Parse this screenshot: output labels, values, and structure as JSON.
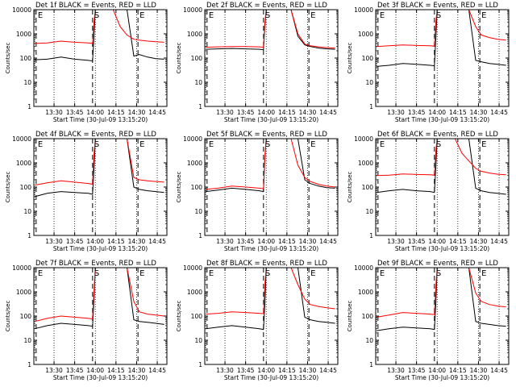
{
  "figure": {
    "x_tick_labels": [
      "13:30",
      "13:45",
      "14:00",
      "14:15",
      "14:30",
      "14:45"
    ],
    "x_label": "Start Time (30-Jul-09 13:15:20)",
    "y_label": "Counts/sec",
    "y_tick_labels": [
      "1",
      "10",
      "100",
      "1000",
      "10000"
    ],
    "marker_labels": [
      "E",
      "S",
      "E"
    ],
    "colors": {
      "events": "#000000",
      "lld": "#ff0000",
      "axes": "#000000",
      "background": "#ffffff"
    }
  },
  "chart_data": [
    {
      "type": "line",
      "title": "Det 1f BLACK = Events, RED = LLD",
      "x_range": [
        "13:15:20",
        "14:52:00"
      ],
      "y_scale": "log",
      "ylim": [
        1,
        10000
      ],
      "x": [
        "13:16",
        "13:25",
        "13:35",
        "13:45",
        "13:55",
        "13:58",
        "13:59",
        "14:00",
        "14:03",
        "14:08",
        "14:13",
        "14:18",
        "14:23",
        "14:28",
        "14:32",
        "14:38",
        "14:44",
        "14:50"
      ],
      "series": [
        {
          "name": "BLACK = Events",
          "color": "#000000",
          "values": [
            85,
            90,
            110,
            90,
            80,
            75,
            700,
            10000,
            10000,
            10000,
            10000,
            10000,
            10000,
            120,
            140,
            110,
            95,
            90
          ]
        },
        {
          "name": "RED = LLD",
          "color": "#ff0000",
          "values": [
            400,
            420,
            500,
            450,
            420,
            400,
            3000,
            10000,
            10000,
            10000,
            10000,
            2000,
            900,
            600,
            550,
            500,
            470,
            450
          ]
        }
      ],
      "markers": [
        {
          "label": "E",
          "time": "13:17"
        },
        {
          "label": "S",
          "time": "13:58"
        },
        {
          "label": "E",
          "time": "14:31"
        }
      ]
    },
    {
      "type": "line",
      "title": "Det 2f BLACK = Events, RED = LLD",
      "x_range": [
        "13:15:20",
        "14:52:00"
      ],
      "y_scale": "log",
      "ylim": [
        1,
        10000
      ],
      "x": [
        "13:16",
        "13:25",
        "13:35",
        "13:45",
        "13:55",
        "13:58",
        "13:59",
        "14:00",
        "14:03",
        "14:08",
        "14:13",
        "14:18",
        "14:23",
        "14:28",
        "14:32",
        "14:38",
        "14:44",
        "14:50"
      ],
      "series": [
        {
          "name": "BLACK = Events",
          "color": "#000000",
          "values": [
            230,
            240,
            250,
            240,
            230,
            220,
            2000,
            10000,
            10000,
            10000,
            10000,
            10000,
            800,
            350,
            300,
            260,
            240,
            230
          ]
        },
        {
          "name": "RED = LLD",
          "color": "#ff0000",
          "values": [
            280,
            290,
            300,
            300,
            290,
            280,
            3000,
            10000,
            10000,
            10000,
            10000,
            10000,
            1000,
            380,
            320,
            290,
            270,
            260
          ]
        }
      ],
      "markers": [
        {
          "label": "E",
          "time": "13:17"
        },
        {
          "label": "S",
          "time": "13:58"
        },
        {
          "label": "E",
          "time": "14:31"
        }
      ]
    },
    {
      "type": "line",
      "title": "Det 3f BLACK = Events, RED = LLD",
      "x_range": [
        "13:15:20",
        "14:52:00"
      ],
      "y_scale": "log",
      "ylim": [
        1,
        10000
      ],
      "x": [
        "13:16",
        "13:25",
        "13:35",
        "13:45",
        "13:55",
        "13:58",
        "13:59",
        "14:00",
        "14:03",
        "14:08",
        "14:13",
        "14:18",
        "14:23",
        "14:28",
        "14:32",
        "14:38",
        "14:44",
        "14:50"
      ],
      "series": [
        {
          "name": "BLACK = Events",
          "color": "#000000",
          "values": [
            45,
            50,
            60,
            55,
            50,
            48,
            600,
            10000,
            10000,
            10000,
            10000,
            10000,
            10000,
            80,
            70,
            60,
            55,
            50
          ]
        },
        {
          "name": "RED = LLD",
          "color": "#ff0000",
          "values": [
            300,
            320,
            350,
            330,
            320,
            310,
            3000,
            10000,
            10000,
            10000,
            10000,
            10000,
            10000,
            2000,
            900,
            700,
            600,
            550
          ]
        }
      ],
      "markers": [
        {
          "label": "E",
          "time": "13:17"
        },
        {
          "label": "S",
          "time": "13:58"
        },
        {
          "label": "E",
          "time": "14:31"
        }
      ]
    },
    {
      "type": "line",
      "title": "Det 4f BLACK = Events, RED = LLD",
      "x_range": [
        "13:15:20",
        "14:52:00"
      ],
      "y_scale": "log",
      "ylim": [
        1,
        10000
      ],
      "x": [
        "13:16",
        "13:25",
        "13:35",
        "13:45",
        "13:55",
        "13:58",
        "13:59",
        "14:00",
        "14:03",
        "14:08",
        "14:13",
        "14:18",
        "14:23",
        "14:28",
        "14:32",
        "14:38",
        "14:44",
        "14:50"
      ],
      "series": [
        {
          "name": "BLACK = Events",
          "color": "#000000",
          "values": [
            40,
            55,
            65,
            60,
            55,
            50,
            500,
            10000,
            10000,
            10000,
            10000,
            10000,
            10000,
            100,
            80,
            70,
            65,
            60
          ]
        },
        {
          "name": "RED = LLD",
          "color": "#ff0000",
          "values": [
            120,
            150,
            180,
            160,
            140,
            130,
            2000,
            10000,
            10000,
            10000,
            10000,
            10000,
            10000,
            250,
            200,
            180,
            170,
            160
          ]
        }
      ],
      "markers": [
        {
          "label": "E",
          "time": "13:17"
        },
        {
          "label": "S",
          "time": "13:58"
        },
        {
          "label": "E",
          "time": "14:31"
        }
      ]
    },
    {
      "type": "line",
      "title": "Det 5f BLACK = Events, RED = LLD",
      "x_range": [
        "13:15:20",
        "14:52:00"
      ],
      "y_scale": "log",
      "ylim": [
        1,
        10000
      ],
      "x": [
        "13:16",
        "13:25",
        "13:35",
        "13:45",
        "13:55",
        "13:58",
        "13:59",
        "14:00",
        "14:03",
        "14:08",
        "14:13",
        "14:18",
        "14:23",
        "14:28",
        "14:32",
        "14:38",
        "14:44",
        "14:50"
      ],
      "series": [
        {
          "name": "BLACK = Events",
          "color": "#000000",
          "values": [
            65,
            75,
            90,
            80,
            70,
            65,
            1500,
            10000,
            10000,
            10000,
            10000,
            10000,
            10000,
            200,
            140,
            110,
            95,
            90
          ]
        },
        {
          "name": "RED = LLD",
          "color": "#ff0000",
          "values": [
            80,
            90,
            110,
            100,
            90,
            85,
            2000,
            10000,
            10000,
            10000,
            10000,
            10000,
            800,
            250,
            170,
            130,
            110,
            100
          ]
        }
      ],
      "markers": [
        {
          "label": "E",
          "time": "13:17"
        },
        {
          "label": "S",
          "time": "13:58"
        },
        {
          "label": "E",
          "time": "14:31"
        }
      ]
    },
    {
      "type": "line",
      "title": "Det 6f BLACK = Events, RED = LLD",
      "x_range": [
        "13:15:20",
        "14:52:00"
      ],
      "y_scale": "log",
      "ylim": [
        1,
        10000
      ],
      "x": [
        "13:16",
        "13:25",
        "13:35",
        "13:45",
        "13:55",
        "13:58",
        "13:59",
        "14:00",
        "14:03",
        "14:08",
        "14:13",
        "14:18",
        "14:23",
        "14:28",
        "14:32",
        "14:38",
        "14:44",
        "14:50"
      ],
      "series": [
        {
          "name": "BLACK = Events",
          "color": "#000000",
          "values": [
            60,
            70,
            80,
            70,
            65,
            60,
            600,
            10000,
            10000,
            10000,
            10000,
            10000,
            10000,
            90,
            70,
            60,
            55,
            50
          ]
        },
        {
          "name": "RED = LLD",
          "color": "#ff0000",
          "values": [
            300,
            310,
            350,
            330,
            320,
            310,
            3000,
            10000,
            10000,
            10000,
            10000,
            2500,
            1200,
            600,
            450,
            380,
            340,
            320
          ]
        }
      ],
      "markers": [
        {
          "label": "E",
          "time": "13:17"
        },
        {
          "label": "S",
          "time": "13:58"
        },
        {
          "label": "E",
          "time": "14:31"
        }
      ]
    },
    {
      "type": "line",
      "title": "Det 7f BLACK = Events, RED = LLD",
      "x_range": [
        "13:15:20",
        "14:52:00"
      ],
      "y_scale": "log",
      "ylim": [
        1,
        10000
      ],
      "x": [
        "13:16",
        "13:25",
        "13:35",
        "13:45",
        "13:55",
        "13:58",
        "13:59",
        "14:00",
        "14:03",
        "14:08",
        "14:13",
        "14:18",
        "14:23",
        "14:28",
        "14:32",
        "14:38",
        "14:44",
        "14:50"
      ],
      "series": [
        {
          "name": "BLACK = Events",
          "color": "#000000",
          "values": [
            30,
            40,
            50,
            45,
            40,
            38,
            400,
            10000,
            10000,
            10000,
            10000,
            10000,
            10000,
            70,
            60,
            55,
            50,
            45
          ]
        },
        {
          "name": "RED = LLD",
          "color": "#ff0000",
          "values": [
            60,
            80,
            100,
            90,
            80,
            75,
            1000,
            10000,
            10000,
            10000,
            10000,
            10000,
            10000,
            400,
            150,
            120,
            110,
            100
          ]
        }
      ],
      "markers": [
        {
          "label": "E",
          "time": "13:17"
        },
        {
          "label": "S",
          "time": "13:58"
        },
        {
          "label": "E",
          "time": "14:31"
        }
      ]
    },
    {
      "type": "line",
      "title": "Det 8f BLACK = Events, RED = LLD",
      "x_range": [
        "13:15:20",
        "14:52:00"
      ],
      "y_scale": "log",
      "ylim": [
        1,
        10000
      ],
      "x": [
        "13:16",
        "13:25",
        "13:35",
        "13:45",
        "13:55",
        "13:58",
        "13:59",
        "14:00",
        "14:03",
        "14:08",
        "14:13",
        "14:18",
        "14:23",
        "14:28",
        "14:32",
        "14:38",
        "14:44",
        "14:50"
      ],
      "series": [
        {
          "name": "BLACK = Events",
          "color": "#000000",
          "values": [
            30,
            35,
            40,
            35,
            30,
            28,
            300,
            10000,
            10000,
            10000,
            10000,
            10000,
            10000,
            90,
            70,
            60,
            55,
            50
          ]
        },
        {
          "name": "RED = LLD",
          "color": "#ff0000",
          "values": [
            120,
            130,
            150,
            140,
            130,
            125,
            2000,
            10000,
            10000,
            10000,
            10000,
            10000,
            2000,
            500,
            300,
            250,
            220,
            200
          ]
        }
      ],
      "markers": [
        {
          "label": "E",
          "time": "13:17"
        },
        {
          "label": "S",
          "time": "13:58"
        },
        {
          "label": "E",
          "time": "14:31"
        }
      ]
    },
    {
      "type": "line",
      "title": "Det 9f BLACK = Events, RED = LLD",
      "x_range": [
        "13:15:20",
        "14:52:00"
      ],
      "y_scale": "log",
      "ylim": [
        1,
        10000
      ],
      "x": [
        "13:16",
        "13:25",
        "13:35",
        "13:45",
        "13:55",
        "13:58",
        "13:59",
        "14:00",
        "14:03",
        "14:08",
        "14:13",
        "14:18",
        "14:23",
        "14:28",
        "14:32",
        "14:38",
        "14:44",
        "14:50"
      ],
      "series": [
        {
          "name": "BLACK = Events",
          "color": "#000000",
          "values": [
            25,
            30,
            35,
            32,
            30,
            28,
            300,
            10000,
            10000,
            10000,
            10000,
            10000,
            10000,
            60,
            50,
            45,
            40,
            38
          ]
        },
        {
          "name": "RED = LLD",
          "color": "#ff0000",
          "values": [
            90,
            110,
            140,
            130,
            120,
            115,
            1500,
            10000,
            10000,
            10000,
            10000,
            10000,
            10000,
            900,
            400,
            300,
            260,
            240
          ]
        }
      ],
      "markers": [
        {
          "label": "E",
          "time": "13:17"
        },
        {
          "label": "S",
          "time": "13:58"
        },
        {
          "label": "E",
          "time": "14:31"
        }
      ]
    }
  ]
}
